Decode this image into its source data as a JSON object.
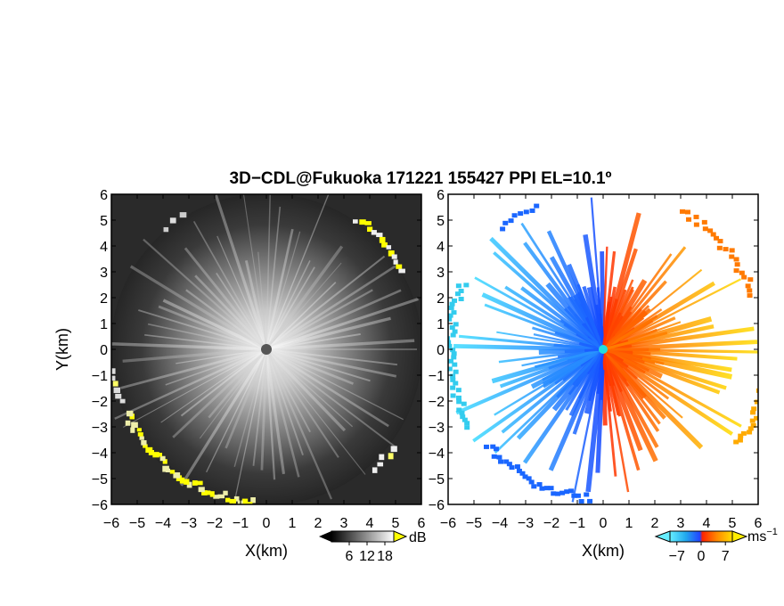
{
  "title": "3D−CDL@Fukuoka 171221 155427 PPI EL=10.1º",
  "colors": {
    "background": "#ffffff",
    "reflectivity_low": "#222222",
    "reflectivity_high": "#f0f0f0",
    "ground_clutter": "#ffff00",
    "velocity_negative_far": "#1a66ff",
    "velocity_negative_near": "#22ccee",
    "velocity_positive_near": "#ff4400",
    "velocity_positive_far": "#ffcc00",
    "radar_site": "#555555"
  },
  "chart_data": [
    {
      "type": "heatmap",
      "name": "reflectivity",
      "xlabel": "X(km)",
      "ylabel": "Y(km)",
      "xlim": [
        -6,
        6
      ],
      "ylim": [
        -6,
        6
      ],
      "xticks": [
        "−6",
        "−5",
        "−4",
        "−3",
        "−2",
        "−1",
        "0",
        "1",
        "2",
        "3",
        "4",
        "5",
        "6"
      ],
      "yticks": [
        "−6",
        "−5",
        "−4",
        "−3",
        "−2",
        "−1",
        "0",
        "1",
        "2",
        "3",
        "4",
        "5",
        "6"
      ],
      "colorbar": {
        "unit": "dB",
        "ticks": [
          "6",
          "12",
          "18"
        ],
        "range": [
          0,
          21
        ]
      },
      "grid": false
    },
    {
      "type": "heatmap",
      "name": "doppler_velocity",
      "xlabel": "X(km)",
      "ylabel": "",
      "xlim": [
        -6,
        6
      ],
      "ylim": [
        -6,
        6
      ],
      "xticks": [
        "−6",
        "−5",
        "−4",
        "−3",
        "−2",
        "−1",
        "0",
        "1",
        "2",
        "3",
        "4",
        "5",
        "6"
      ],
      "yticks": [
        "−6",
        "−5",
        "−4",
        "−3",
        "−2",
        "−1",
        "0",
        "1",
        "2",
        "3",
        "4",
        "5",
        "6"
      ],
      "colorbar": {
        "unit": "ms",
        "unit_exponent": "−1",
        "ticks": [
          "−7",
          "0",
          "7"
        ],
        "range": [
          -9,
          9
        ]
      },
      "grid": false
    }
  ]
}
